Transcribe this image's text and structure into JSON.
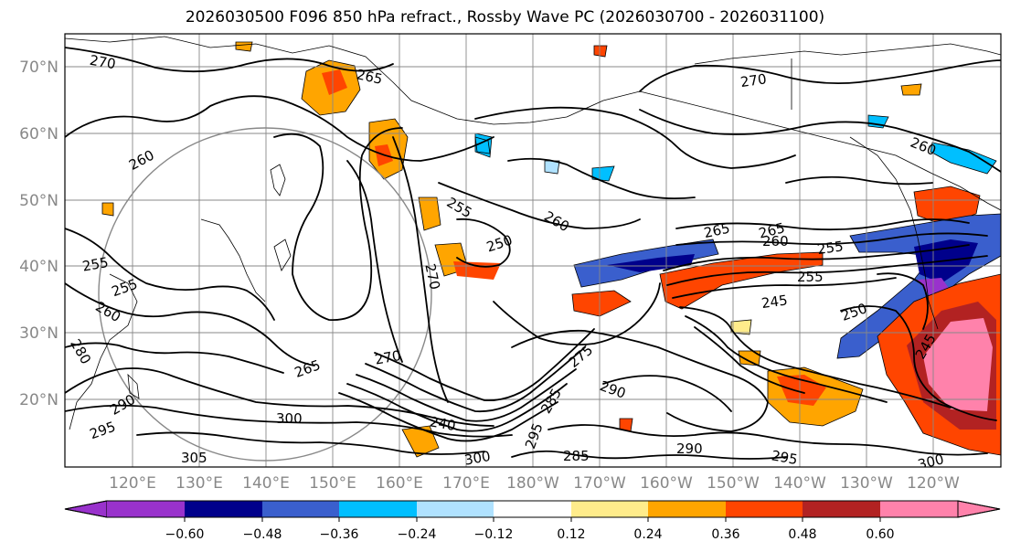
{
  "title": "2026030500 F096 850 hPa refract., Rossby Wave PC (2026030700 - 2026031100)",
  "map": {
    "lat_ticks": [
      "70°N",
      "60°N",
      "50°N",
      "40°N",
      "30°N",
      "20°N"
    ],
    "lon_ticks": [
      "120°E",
      "130°E",
      "140°E",
      "150°E",
      "160°E",
      "170°E",
      "180°W",
      "170°W",
      "160°W",
      "150°W",
      "140°W",
      "130°W",
      "120°W"
    ],
    "contour_labels": [
      "270",
      "265",
      "270",
      "260",
      "260",
      "255",
      "250",
      "260",
      "265",
      "265",
      "260",
      "255",
      "255",
      "245",
      "250",
      "245",
      "270",
      "255",
      "255",
      "260",
      "280",
      "265",
      "270",
      "275",
      "290",
      "285",
      "290",
      "295",
      "300",
      "305",
      "300",
      "295",
      "290",
      "240",
      "300",
      "285",
      "295"
    ],
    "colors": {
      "contour": "#000000",
      "grid": "#888888",
      "coast": "#000000",
      "shading_colors": [
        "#9932cc",
        "#00008b",
        "#3a5fcd",
        "#00bfff",
        "#b0e2ff",
        "#ffffff",
        "#ffec8b",
        "#ffa500",
        "#ff4500",
        "#b22222",
        "#ff82ab"
      ]
    }
  },
  "colorbar": {
    "colors": [
      "#9932cc",
      "#00008b",
      "#3a5fcd",
      "#00bfff",
      "#b0e2ff",
      "#ffffff",
      "#ffec8b",
      "#ffa500",
      "#ff4500",
      "#b22222",
      "#ff82ab"
    ],
    "tick_labels": [
      "−0.60",
      "−0.48",
      "−0.36",
      "−0.24",
      "−0.12",
      "0.12",
      "0.24",
      "0.36",
      "0.48",
      "0.60"
    ]
  }
}
